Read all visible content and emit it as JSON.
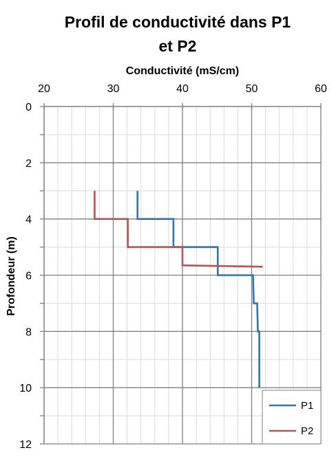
{
  "chart_data": {
    "type": "line",
    "title_lines": [
      "Profil de conductivité dans P1",
      "et P2"
    ],
    "xlabel": "Conductivité (mS/cm)",
    "ylabel": "Profondeur (m)",
    "xlim": [
      20,
      60
    ],
    "ylim": [
      0,
      12
    ],
    "y_inverted": true,
    "x_axis_position": "top",
    "x_ticks": [
      20,
      30,
      40,
      50,
      60
    ],
    "y_ticks": [
      0,
      2,
      4,
      6,
      8,
      10,
      12
    ],
    "grid": true,
    "legend_position": "bottom-right",
    "series": [
      {
        "name": "P1",
        "color": "#2E75B6",
        "points": [
          [
            33.5,
            3.0
          ],
          [
            33.5,
            4.0
          ],
          [
            38.7,
            4.0
          ],
          [
            38.7,
            5.0
          ],
          [
            45.1,
            5.0
          ],
          [
            45.1,
            6.0
          ],
          [
            50.2,
            6.0
          ],
          [
            50.3,
            7.0
          ],
          [
            50.8,
            7.0
          ],
          [
            50.9,
            8.0
          ],
          [
            51.1,
            8.0
          ],
          [
            51.1,
            10.0
          ]
        ]
      },
      {
        "name": "P2",
        "color": "#C0504D",
        "points": [
          [
            27.3,
            3.0
          ],
          [
            27.3,
            4.0
          ],
          [
            32.1,
            4.0
          ],
          [
            32.1,
            5.0
          ],
          [
            40.0,
            5.0
          ],
          [
            40.0,
            5.65
          ],
          [
            51.6,
            5.7
          ]
        ]
      }
    ]
  }
}
